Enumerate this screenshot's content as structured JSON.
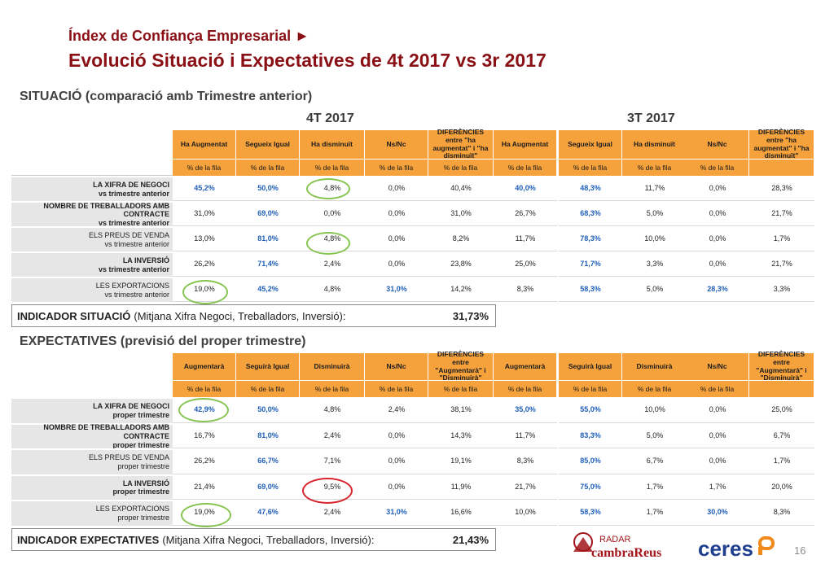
{
  "header": {
    "kicker": "Índex de Confiança Empresarial ►",
    "title": "Evolució Situació i Expectatives de 4t 2017 vs 3r 2017"
  },
  "situacio": {
    "section_title": "SITUACIÓ (comparació amb Trimestre anterior)",
    "period_a": "4T 2017",
    "period_b": "3T 2017",
    "headers": [
      "Ha Augmentat",
      "Segueix Igual",
      "Ha disminuït",
      "Ns/Nc",
      "DIFERÈNCIES entre \"ha augmentat\" i \"ha disminuït\""
    ],
    "subheader": "% de la fila",
    "rows": [
      {
        "label1": "LA XIFRA DE NEGOCI",
        "label2": "vs trimestre anterior",
        "a": [
          "45,2%",
          "50,0%",
          "4,8%",
          "0,0%",
          "40,4%"
        ],
        "b": [
          "40,0%",
          "48,3%",
          "11,7%",
          "0,0%",
          "28,3%"
        ]
      },
      {
        "label1": "NOMBRE DE TREBALLADORS AMB",
        "label2": "CONTRACTE",
        "label3": "vs trimestre anterior",
        "a": [
          "31,0%",
          "69,0%",
          "0,0%",
          "0,0%",
          "31,0%"
        ],
        "b": [
          "26,7%",
          "68,3%",
          "5,0%",
          "0,0%",
          "21,7%"
        ]
      },
      {
        "label1": "ELS PREUS DE VENDA",
        "label2": "vs trimestre anterior",
        "a": [
          "13,0%",
          "81,0%",
          "4,8%",
          "0,0%",
          "8,2%"
        ],
        "b": [
          "11,7%",
          "78,3%",
          "10,0%",
          "0,0%",
          "1,7%"
        ]
      },
      {
        "label1": "LA INVERSIÓ",
        "label2": "vs trimestre anterior",
        "a": [
          "26,2%",
          "71,4%",
          "2,4%",
          "0,0%",
          "23,8%"
        ],
        "b": [
          "25,0%",
          "71,7%",
          "3,3%",
          "0,0%",
          "21,7%"
        ]
      },
      {
        "label1": "LES EXPORTACIONS",
        "label2": "vs trimestre anterior",
        "a": [
          "19,0%",
          "45,2%",
          "4,8%",
          "31,0%",
          "14,2%"
        ],
        "b": [
          "8,3%",
          "58,3%",
          "5,0%",
          "28,3%",
          "3,3%"
        ]
      }
    ],
    "indicator": {
      "name": "INDICADOR SITUACIÓ",
      "desc": "(Mitjana Xifra Negoci, Treballadors, Inversió):",
      "value": "31,73%"
    }
  },
  "expectatives": {
    "section_title": "EXPECTATIVES (previsió del proper trimestre)",
    "headers": [
      "Augmentarà",
      "Seguirà Igual",
      "Disminuirà",
      "Ns/Nc",
      "DIFERÈNCIES entre \"Augmentarà\" i \"Disminuirà\""
    ],
    "subheader": "% de la fila",
    "rows": [
      {
        "label1": "LA XIFRA DE NEGOCI",
        "label2": "proper trimestre",
        "a": [
          "42,9%",
          "50,0%",
          "4,8%",
          "2,4%",
          "38,1%"
        ],
        "b": [
          "35,0%",
          "55,0%",
          "10,0%",
          "0,0%",
          "25,0%"
        ]
      },
      {
        "label1": "NOMBRE DE TREBALLADORS AMB",
        "label2": "CONTRACTE",
        "label3": "proper trimestre",
        "a": [
          "16,7%",
          "81,0%",
          "2,4%",
          "0,0%",
          "14,3%"
        ],
        "b": [
          "11,7%",
          "83,3%",
          "5,0%",
          "0,0%",
          "6,7%"
        ]
      },
      {
        "label1": "ELS PREUS DE VENDA",
        "label2": "proper trimestre",
        "a": [
          "26,2%",
          "66,7%",
          "7,1%",
          "0,0%",
          "19,1%"
        ],
        "b": [
          "8,3%",
          "85,0%",
          "6,7%",
          "0,0%",
          "1,7%"
        ]
      },
      {
        "label1": "LA INVERSIÓ",
        "label2": "proper trimestre",
        "a": [
          "21,4%",
          "69,0%",
          "9,5%",
          "0,0%",
          "11,9%"
        ],
        "b": [
          "21,7%",
          "75,0%",
          "1,7%",
          "1,7%",
          "20,0%"
        ]
      },
      {
        "label1": "LES EXPORTACIONS",
        "label2": "proper trimestre",
        "a": [
          "19,0%",
          "47,6%",
          "2,4%",
          "31,0%",
          "16,6%"
        ],
        "b": [
          "10,0%",
          "58,3%",
          "1,7%",
          "30,0%",
          "8,3%"
        ]
      }
    ],
    "indicator": {
      "name": "INDICADOR EXPECTATIVES",
      "desc": "(Mitjana Xifra Negoci, Treballadors, Inversió):",
      "value": "21,43%"
    }
  },
  "highlight_colors": {
    "green": "#86c450",
    "red": "#d9232d"
  },
  "logos": {
    "radar": "RADAR",
    "cambra": "cambraReus",
    "ceres": "ceres"
  },
  "page_number": "16"
}
